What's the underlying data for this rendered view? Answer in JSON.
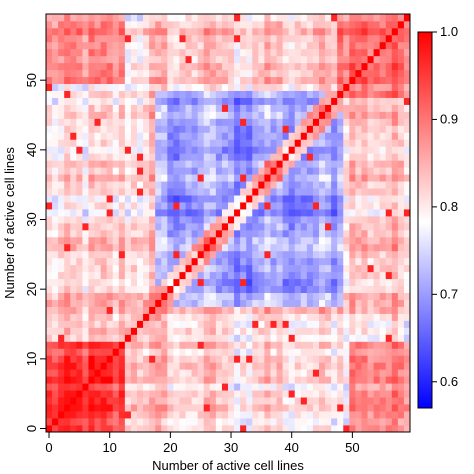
{
  "chart_data": {
    "type": "heatmap",
    "title": "",
    "xlabel": "Number of active cell lines",
    "ylabel": "Number of active cell lines",
    "x_range": [
      0,
      59
    ],
    "y_range": [
      0,
      59
    ],
    "x_ticks": [
      0,
      10,
      20,
      30,
      40,
      50
    ],
    "y_ticks": [
      0,
      10,
      20,
      30,
      40,
      50
    ],
    "grid_size": 60,
    "diagonal_value": 1.0,
    "colorbar": {
      "range": [
        0.57,
        1.0
      ],
      "ticks": [
        0.6,
        0.7,
        0.8,
        0.9,
        1.0
      ],
      "tick_labels": [
        "0.6",
        "0.7",
        "0.8",
        "0.9",
        "1.0"
      ],
      "colors": [
        "#0000ff",
        "#ffffff",
        "#ff0000"
      ],
      "midpoint": 0.785
    },
    "region_means": [
      {
        "x_range": [
          0,
          12
        ],
        "y_range": [
          0,
          12
        ],
        "value": 0.95
      },
      {
        "x_range": [
          48,
          59
        ],
        "y_range": [
          48,
          59
        ],
        "value": 0.92
      },
      {
        "x_range": [
          0,
          15
        ],
        "y_range": [
          15,
          59
        ],
        "value": 0.84
      },
      {
        "x_range": [
          15,
          59
        ],
        "y_range": [
          0,
          15
        ],
        "value": 0.84
      },
      {
        "x_range": [
          18,
          48
        ],
        "y_range": [
          18,
          48
        ],
        "value": 0.72
      }
    ]
  },
  "cells": [],
  "x_tick_labels": [
    "0",
    "10",
    "20",
    "30",
    "40",
    "50"
  ],
  "y_tick_labels": [
    "0",
    "10",
    "20",
    "30",
    "40",
    "50"
  ],
  "cb_tick_labels": [
    "0.6",
    "0.7",
    "0.8",
    "0.9",
    "1.0"
  ]
}
